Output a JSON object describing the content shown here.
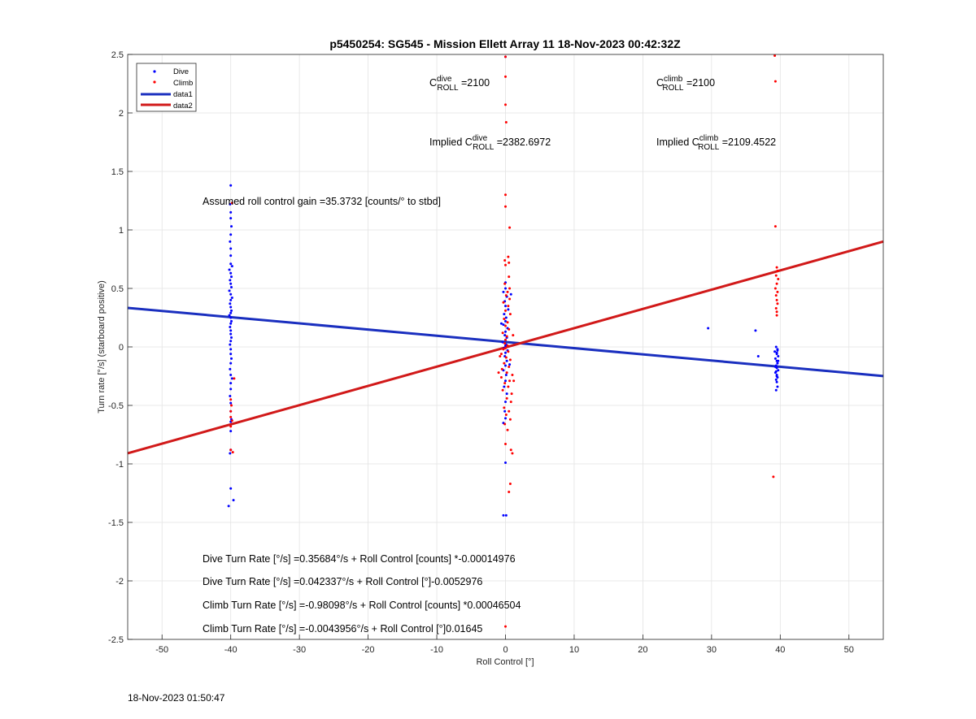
{
  "chart_data": {
    "type": "scatter",
    "title": "p5450254: SG545 - Mission Ellett Array 11 18-Nov-2023 00:42:32Z",
    "xlabel": "Roll Control [°]",
    "ylabel": "Turn rate [°/s] (starboard positive)",
    "xlim": [
      -55,
      55
    ],
    "ylim": [
      -2.5,
      2.5
    ],
    "x_ticks": [
      -50,
      -40,
      -30,
      -20,
      -10,
      0,
      10,
      20,
      30,
      40,
      50
    ],
    "y_ticks": [
      -2.5,
      -2,
      -1.5,
      -1,
      -0.5,
      0,
      0.5,
      1,
      1.5,
      2,
      2.5
    ],
    "x_tick_labels": [
      "-50",
      "-40",
      "-30",
      "-20",
      "-10",
      "0",
      "10",
      "20",
      "30",
      "40",
      "50"
    ],
    "y_tick_labels": [
      "-2.5",
      "-2",
      "-1.5",
      "-1",
      "-0.5",
      "0",
      "0.5",
      "1",
      "1.5",
      "2",
      "2.5"
    ],
    "grid": true,
    "legend_position": "top-left",
    "colors": {
      "dive": "#0000ff",
      "climb": "#ff0000",
      "data1": "#1a2fbf",
      "data2": "#d11919"
    },
    "series": [
      {
        "name": "Dive",
        "kind": "points",
        "color": "#0000ff",
        "points": [
          [
            -40.0,
            1.38
          ],
          [
            -40.1,
            1.22
          ],
          [
            -40.0,
            1.15
          ],
          [
            -40.0,
            1.1
          ],
          [
            -39.9,
            1.03
          ],
          [
            -40.0,
            0.96
          ],
          [
            -40.1,
            0.9
          ],
          [
            -40.0,
            0.84
          ],
          [
            -40.0,
            0.78
          ],
          [
            -40.0,
            0.71
          ],
          [
            -39.8,
            0.69
          ],
          [
            -40.2,
            0.66
          ],
          [
            -40.0,
            0.63
          ],
          [
            -39.9,
            0.6
          ],
          [
            -40.1,
            0.57
          ],
          [
            -40.0,
            0.54
          ],
          [
            -39.9,
            0.51
          ],
          [
            -40.2,
            0.48
          ],
          [
            -40.0,
            0.45
          ],
          [
            -39.8,
            0.42
          ],
          [
            -40.0,
            0.4
          ],
          [
            -40.1,
            0.37
          ],
          [
            -40.0,
            0.34
          ],
          [
            -39.9,
            0.31
          ],
          [
            -40.0,
            0.29
          ],
          [
            -40.2,
            0.27
          ],
          [
            -40.0,
            0.25
          ],
          [
            -39.9,
            0.22
          ],
          [
            -40.0,
            0.2
          ],
          [
            -40.1,
            0.17
          ],
          [
            -40.0,
            0.14
          ],
          [
            -40.0,
            0.11
          ],
          [
            -39.9,
            0.08
          ],
          [
            -40.0,
            0.05
          ],
          [
            -40.1,
            0.02
          ],
          [
            -40.0,
            -0.02
          ],
          [
            -40.0,
            -0.06
          ],
          [
            -39.9,
            -0.1
          ],
          [
            -40.0,
            -0.14
          ],
          [
            -40.1,
            -0.19
          ],
          [
            -40.0,
            -0.24
          ],
          [
            -39.8,
            -0.27
          ],
          [
            -40.0,
            -0.31
          ],
          [
            -40.0,
            -0.36
          ],
          [
            -40.1,
            -0.42
          ],
          [
            -40.0,
            -0.48
          ],
          [
            -40.0,
            -0.55
          ],
          [
            -39.9,
            -0.62
          ],
          [
            -40.0,
            -0.64
          ],
          [
            -40.0,
            -0.72
          ],
          [
            -40.0,
            -0.88
          ],
          [
            -40.1,
            -0.91
          ],
          [
            -40.0,
            -1.21
          ],
          [
            -39.6,
            -1.31
          ],
          [
            -40.3,
            -1.36
          ],
          [
            0.0,
            0.5
          ],
          [
            -0.3,
            0.47
          ],
          [
            0.2,
            0.43
          ],
          [
            -0.1,
            0.39
          ],
          [
            0.0,
            0.35
          ],
          [
            0.4,
            0.32
          ],
          [
            -0.2,
            0.28
          ],
          [
            0.1,
            0.25
          ],
          [
            0.0,
            0.22
          ],
          [
            -0.3,
            0.19
          ],
          [
            0.3,
            0.16
          ],
          [
            0.0,
            0.13
          ],
          [
            -0.1,
            0.1
          ],
          [
            0.2,
            0.08
          ],
          [
            0.0,
            0.06
          ],
          [
            -0.4,
            0.04
          ],
          [
            0.1,
            0.02
          ],
          [
            0.0,
            0.01
          ],
          [
            -0.2,
            -0.01
          ],
          [
            0.3,
            -0.03
          ],
          [
            0.0,
            -0.05
          ],
          [
            -0.1,
            -0.08
          ],
          [
            0.2,
            -0.12
          ],
          [
            0.0,
            -0.16
          ],
          [
            -0.3,
            -0.2
          ],
          [
            0.1,
            -0.24
          ],
          [
            0.0,
            -0.29
          ],
          [
            -0.2,
            -0.34
          ],
          [
            0.2,
            -0.4
          ],
          [
            0.0,
            -0.47
          ],
          [
            -0.1,
            -0.55
          ],
          [
            0.0,
            -0.61
          ],
          [
            -0.3,
            -0.65
          ],
          [
            0.0,
            -0.99
          ],
          [
            -0.3,
            -1.44
          ],
          [
            0.1,
            -1.44
          ],
          [
            0.0,
            2.48
          ],
          [
            0.0,
            0.55
          ],
          [
            0.8,
            0.45
          ],
          [
            -0.6,
            0.2
          ],
          [
            0.6,
            -0.15
          ],
          [
            29.5,
            0.16
          ],
          [
            36.4,
            0.14
          ],
          [
            36.8,
            -0.08
          ],
          [
            39.4,
            0.0
          ],
          [
            39.6,
            -0.02
          ],
          [
            39.2,
            -0.04
          ],
          [
            39.5,
            -0.06
          ],
          [
            39.7,
            -0.08
          ],
          [
            39.3,
            -0.1
          ],
          [
            39.5,
            -0.12
          ],
          [
            39.6,
            -0.14
          ],
          [
            39.4,
            -0.16
          ],
          [
            39.5,
            -0.18
          ],
          [
            39.7,
            -0.2
          ],
          [
            39.3,
            -0.22
          ],
          [
            39.5,
            -0.24
          ],
          [
            39.6,
            -0.26
          ],
          [
            39.4,
            -0.28
          ],
          [
            39.5,
            -0.3
          ],
          [
            39.6,
            -0.34
          ],
          [
            39.4,
            -0.37
          ],
          [
            39.5,
            -0.05
          ],
          [
            39.3,
            -0.17
          ],
          [
            39.7,
            -0.12
          ],
          [
            39.4,
            -0.21
          ],
          [
            39.6,
            -0.03
          ],
          [
            39.5,
            -0.25
          ]
        ]
      },
      {
        "name": "Climb",
        "kind": "points",
        "color": "#ff0000",
        "points": [
          [
            -39.5,
            -0.27
          ],
          [
            -40.0,
            -0.45
          ],
          [
            -39.9,
            -0.5
          ],
          [
            -40.0,
            -0.55
          ],
          [
            -40.0,
            -0.6
          ],
          [
            -39.8,
            -0.63
          ],
          [
            -40.0,
            -0.68
          ],
          [
            -40.0,
            -0.88
          ],
          [
            -39.7,
            -0.9
          ],
          [
            -39.8,
            1.23
          ],
          [
            0.0,
            2.48
          ],
          [
            0.0,
            2.31
          ],
          [
            0.0,
            2.07
          ],
          [
            0.1,
            1.92
          ],
          [
            0.0,
            1.3
          ],
          [
            0.0,
            1.2
          ],
          [
            0.6,
            1.02
          ],
          [
            0.4,
            0.77
          ],
          [
            -0.1,
            0.74
          ],
          [
            0.5,
            0.72
          ],
          [
            0.0,
            0.7
          ],
          [
            0.5,
            0.6
          ],
          [
            -0.1,
            0.54
          ],
          [
            0.6,
            0.5
          ],
          [
            0.3,
            0.47
          ],
          [
            0.1,
            0.44
          ],
          [
            0.6,
            0.41
          ],
          [
            -0.3,
            0.38
          ],
          [
            0.4,
            0.35
          ],
          [
            0.0,
            0.31
          ],
          [
            0.7,
            0.28
          ],
          [
            -0.2,
            0.24
          ],
          [
            0.3,
            0.21
          ],
          [
            0.0,
            0.18
          ],
          [
            0.5,
            0.15
          ],
          [
            -0.4,
            0.12
          ],
          [
            0.2,
            0.09
          ],
          [
            0.0,
            0.06
          ],
          [
            -0.1,
            0.03
          ],
          [
            0.3,
            0.01
          ],
          [
            0.0,
            -0.01
          ],
          [
            -0.3,
            -0.02
          ],
          [
            0.4,
            -0.04
          ],
          [
            -0.6,
            -0.06
          ],
          [
            0.1,
            -0.09
          ],
          [
            0.7,
            -0.11
          ],
          [
            -0.2,
            -0.14
          ],
          [
            0.5,
            -0.17
          ],
          [
            -0.5,
            -0.19
          ],
          [
            0.2,
            -0.22
          ],
          [
            1.0,
            -0.24
          ],
          [
            -0.6,
            -0.26
          ],
          [
            0.6,
            -0.29
          ],
          [
            -0.1,
            -0.31
          ],
          [
            1.2,
            -0.29
          ],
          [
            0.4,
            -0.34
          ],
          [
            -0.4,
            -0.37
          ],
          [
            0.9,
            -0.4
          ],
          [
            0.2,
            -0.44
          ],
          [
            0.8,
            -0.47
          ],
          [
            -0.2,
            -0.52
          ],
          [
            0.5,
            -0.55
          ],
          [
            0.1,
            -0.58
          ],
          [
            0.7,
            -0.62
          ],
          [
            -0.1,
            -0.66
          ],
          [
            0.3,
            -0.71
          ],
          [
            0.0,
            -0.83
          ],
          [
            0.8,
            -0.88
          ],
          [
            1.0,
            -0.91
          ],
          [
            0.7,
            -1.17
          ],
          [
            0.5,
            -1.24
          ],
          [
            0.0,
            -2.39
          ],
          [
            -1.0,
            -0.22
          ],
          [
            -0.8,
            -0.08
          ],
          [
            1.1,
            0.1
          ],
          [
            39.2,
            2.49
          ],
          [
            39.3,
            2.27
          ],
          [
            39.3,
            1.03
          ],
          [
            39.5,
            0.68
          ],
          [
            39.6,
            0.65
          ],
          [
            39.4,
            0.61
          ],
          [
            39.7,
            0.58
          ],
          [
            39.5,
            0.54
          ],
          [
            39.3,
            0.5
          ],
          [
            39.6,
            0.47
          ],
          [
            39.4,
            0.44
          ],
          [
            39.5,
            0.4
          ],
          [
            39.6,
            0.37
          ],
          [
            39.4,
            0.33
          ],
          [
            39.5,
            0.3
          ],
          [
            39.5,
            0.27
          ],
          [
            39.0,
            -1.11
          ]
        ]
      },
      {
        "name": "data1",
        "kind": "line",
        "color": "#1a2fbf",
        "width": 3,
        "x": [
          -55,
          55
        ],
        "y": [
          0.3337,
          -0.2491
        ]
      },
      {
        "name": "data2",
        "kind": "line",
        "color": "#d11919",
        "width": 3,
        "x": [
          -55,
          55
        ],
        "y": [
          -0.9091,
          0.9004
        ]
      }
    ],
    "annotations": {
      "c_roll_dive": {
        "prefix": "C",
        "sup": "dive",
        "sub": "ROLL",
        "suffix": " =2100"
      },
      "c_roll_climb": {
        "prefix": "C",
        "sup": "climb",
        "sub": "ROLL",
        "suffix": " =2100"
      },
      "implied_dive": {
        "prefix": "Implied C",
        "sup": "dive",
        "sub": "ROLL",
        "suffix": " =2382.6972"
      },
      "implied_climb": {
        "prefix": "Implied C",
        "sup": "climb",
        "sub": "ROLL",
        "suffix": " =2109.4522"
      },
      "gain": "Assumed roll control gain =35.3732 [counts/° to stbd]",
      "eq1": "Dive Turn Rate [°/s] =0.35684°/s + Roll Control [counts] *-0.00014976",
      "eq2": "Dive Turn Rate [°/s] =0.042337°/s + Roll Control [°]-0.0052976",
      "eq3": "Climb Turn Rate [°/s] =-0.98098°/s + Roll Control [counts] *0.00046504",
      "eq4": "Climb Turn Rate [°/s] =-0.0043956°/s + Roll Control [°]0.01645"
    }
  },
  "footer": {
    "timestamp": "18-Nov-2023 01:50:47"
  }
}
